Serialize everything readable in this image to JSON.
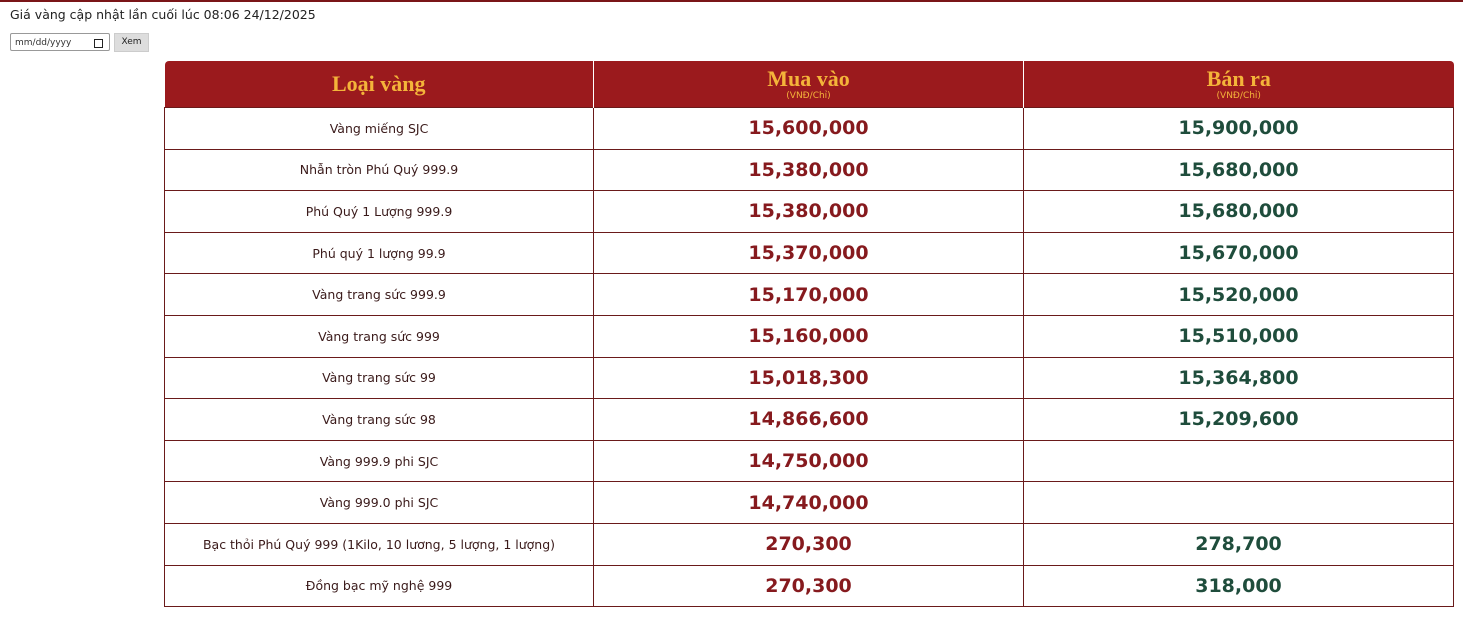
{
  "header": {
    "update_text": "Giá vàng cập nhật lần cuối lúc 08:06 24/12/2025",
    "date_placeholder": "mm/dd/yyyy",
    "button": "Xem"
  },
  "table": {
    "columns": [
      {
        "title": "Loại vàng",
        "unit": null
      },
      {
        "title": "Mua vào",
        "unit": "(VNĐ/Chỉ)"
      },
      {
        "title": "Bán ra",
        "unit": "(VNĐ/Chỉ)"
      }
    ],
    "rows": [
      [
        "Vàng miếng SJC",
        "15,600,000",
        "15,900,000"
      ],
      [
        "Nhẫn tròn Phú Quý 999.9",
        "15,380,000",
        "15,680,000"
      ],
      [
        "Phú Quý 1 Lượng 999.9",
        "15,380,000",
        "15,680,000"
      ],
      [
        "Phú quý 1 lượng 99.9",
        "15,370,000",
        "15,670,000"
      ],
      [
        "Vàng trang sức 999.9",
        "15,170,000",
        "15,520,000"
      ],
      [
        "Vàng trang sức 999",
        "15,160,000",
        "15,510,000"
      ],
      [
        "Vàng trang sức 99",
        "15,018,300",
        "15,364,800"
      ],
      [
        "Vàng trang sức 98",
        "14,866,600",
        "15,209,600"
      ],
      [
        "Vàng 999.9 phi SJC",
        "14,750,000",
        null
      ],
      [
        "Vàng 999.0 phi SJC",
        "14,740,000",
        null
      ],
      [
        "Bạc thỏi Phú Quý 999 (1Kilo, 10 lương, 5 lượng, 1 lượng)",
        "270,300",
        "278,700"
      ],
      [
        "Đồng bạc mỹ nghệ 999",
        "270,300",
        "318,000"
      ]
    ]
  }
}
